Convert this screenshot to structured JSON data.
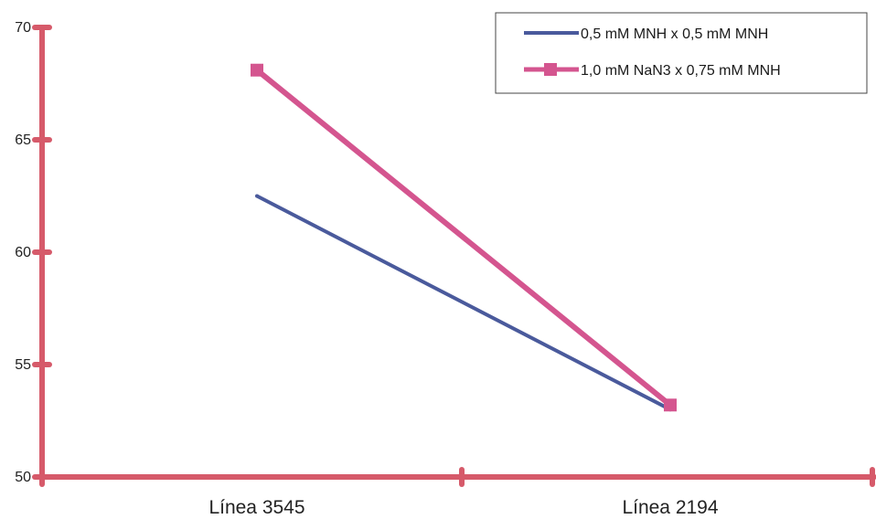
{
  "chart_data": {
    "type": "line",
    "categories": [
      "Línea 3545",
      "Línea 2194"
    ],
    "series": [
      {
        "name": "0,5 mM MNH x 0,5 mM MNH",
        "values": [
          62.5,
          53.0
        ],
        "color": "#4a5a9c",
        "marker": "none"
      },
      {
        "name": "1,0 mM NaN3 x 0,75 mM MNH",
        "values": [
          68.1,
          53.2
        ],
        "color": "#d4558f",
        "marker": "square"
      }
    ],
    "yticks": [
      "50",
      "55",
      "60",
      "65",
      "70"
    ],
    "ylim": [
      50,
      70
    ],
    "axis_color": "#d65a6a",
    "legend_placement": "top-right",
    "grid": false
  }
}
